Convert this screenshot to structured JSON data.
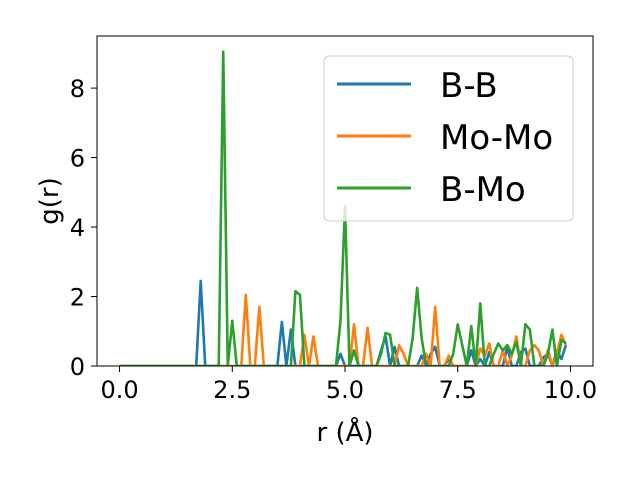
{
  "chart_data": {
    "type": "line",
    "title": "",
    "xlabel": "r (Å)",
    "ylabel": "g(r)",
    "xlim": [
      -0.5,
      10.5
    ],
    "ylim": [
      0,
      9.5
    ],
    "xticks": [
      0.0,
      2.5,
      5.0,
      7.5,
      10.0
    ],
    "xtick_labels": [
      "0.0",
      "2.5",
      "5.0",
      "7.5",
      "10.0"
    ],
    "yticks": [
      0,
      2,
      4,
      6,
      8
    ],
    "ytick_labels": [
      "0",
      "2",
      "4",
      "6",
      "8"
    ],
    "grid": false,
    "legend_position": "upper right",
    "x": [
      0.0,
      0.1,
      0.2,
      0.3,
      0.4,
      0.5,
      0.6,
      0.7,
      0.8,
      0.9,
      1.0,
      1.1,
      1.2,
      1.3,
      1.4,
      1.5,
      1.6,
      1.7,
      1.8,
      1.9,
      2.0,
      2.1,
      2.2,
      2.3,
      2.4,
      2.5,
      2.6,
      2.7,
      2.8,
      2.9,
      3.0,
      3.1,
      3.2,
      3.3,
      3.4,
      3.5,
      3.6,
      3.7,
      3.8,
      3.9,
      4.0,
      4.1,
      4.2,
      4.3,
      4.4,
      4.5,
      4.6,
      4.7,
      4.8,
      4.9,
      5.0,
      5.1,
      5.2,
      5.3,
      5.4,
      5.5,
      5.6,
      5.7,
      5.8,
      5.9,
      6.0,
      6.1,
      6.2,
      6.3,
      6.4,
      6.5,
      6.6,
      6.7,
      6.8,
      6.9,
      7.0,
      7.1,
      7.2,
      7.3,
      7.4,
      7.5,
      7.6,
      7.7,
      7.8,
      7.9,
      8.0,
      8.1,
      8.2,
      8.3,
      8.4,
      8.5,
      8.6,
      8.7,
      8.8,
      8.9,
      9.0,
      9.1,
      9.2,
      9.3,
      9.4,
      9.5,
      9.6,
      9.7,
      9.8,
      9.9
    ],
    "series": [
      {
        "name": "B-B",
        "color": "#1f77b4",
        "values": [
          0,
          0,
          0,
          0,
          0,
          0,
          0,
          0,
          0,
          0,
          0,
          0,
          0,
          0,
          0,
          0,
          0,
          0,
          2.45,
          0,
          0,
          0,
          0,
          0,
          0,
          0,
          0,
          0,
          0,
          0,
          0,
          0,
          0,
          0,
          0,
          0,
          1.27,
          0,
          1.05,
          0,
          0,
          0,
          0,
          0,
          0,
          0,
          0,
          0,
          0,
          0.35,
          0,
          0,
          0,
          0,
          0,
          0,
          0,
          0,
          0.45,
          0.85,
          0,
          0.55,
          0,
          0,
          0,
          0,
          0,
          0.3,
          0,
          0.35,
          0.55,
          0,
          0,
          0.2,
          0,
          0,
          0,
          0,
          0.45,
          0,
          0.2,
          0,
          0.4,
          0,
          0,
          0,
          0.55,
          0,
          0,
          0.4,
          0.5,
          0,
          0,
          0,
          0.25,
          0.35,
          0,
          0.45,
          0.2,
          0.6
        ]
      },
      {
        "name": "Mo-Mo",
        "color": "#ff7f0e",
        "values": [
          0,
          0,
          0,
          0,
          0,
          0,
          0,
          0,
          0,
          0,
          0,
          0,
          0,
          0,
          0,
          0,
          0,
          0,
          0,
          0,
          0,
          0,
          0,
          0,
          0,
          0,
          0,
          0,
          2.05,
          0,
          0,
          1.7,
          0,
          0,
          0,
          0,
          0,
          0,
          0,
          0,
          0,
          0.9,
          0,
          0.85,
          0,
          0,
          0,
          0,
          0,
          0,
          0,
          0,
          1.2,
          0,
          0,
          1.1,
          0,
          0,
          0,
          0,
          0,
          0,
          0.6,
          0.35,
          0,
          0,
          0,
          0,
          0.35,
          0,
          1.7,
          0,
          0,
          0.3,
          0,
          0,
          0,
          0,
          0,
          0,
          0.5,
          0.3,
          0.65,
          0,
          0,
          0.45,
          0,
          0.3,
          0.85,
          0,
          0,
          0.45,
          0.6,
          0.45,
          0,
          0.45,
          0,
          0.35,
          0.9,
          0.6
        ]
      },
      {
        "name": "B-Mo",
        "color": "#2ca02c",
        "values": [
          0,
          0,
          0,
          0,
          0,
          0,
          0,
          0,
          0,
          0,
          0,
          0,
          0,
          0,
          0,
          0,
          0,
          0,
          0,
          0,
          0,
          0,
          0,
          9.05,
          0,
          1.3,
          0,
          0,
          0,
          0,
          0,
          0,
          0,
          0,
          0,
          0,
          0,
          0,
          0,
          2.15,
          2.05,
          0,
          0,
          0,
          0,
          0,
          0,
          0,
          0,
          1.3,
          4.6,
          0,
          0.45,
          0,
          0,
          0,
          0,
          0,
          0.35,
          0.95,
          0.9,
          0,
          0,
          0,
          0,
          0.8,
          2.25,
          0.8,
          0,
          0,
          0,
          0,
          0,
          0,
          0.35,
          1.2,
          0.6,
          0,
          1.15,
          0,
          1.8,
          0,
          0,
          0.35,
          0.65,
          0.45,
          0.6,
          0.35,
          0.7,
          0,
          1.2,
          1.05,
          0,
          0,
          0,
          0.35,
          1.05,
          0,
          0.75,
          0.65
        ]
      }
    ]
  }
}
